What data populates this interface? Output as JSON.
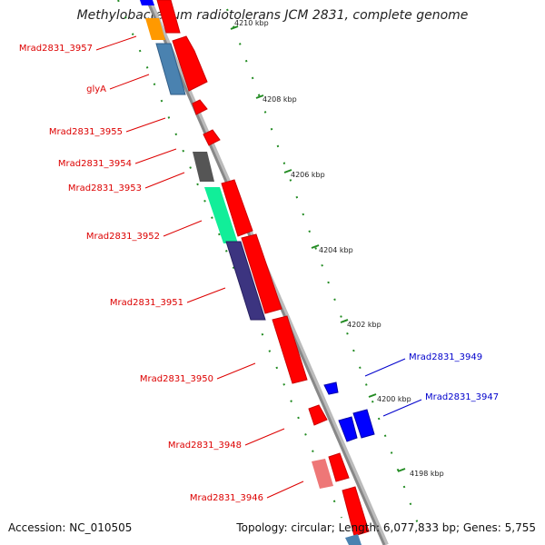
{
  "title": "Methylobacterium radiotolerans JCM 2831, complete genome",
  "footer": {
    "accession": "Accession: NC_010505",
    "summary": "Topology: circular; Length: 6,077,833 bp; Genes: 5,755"
  },
  "colors": {
    "forward_gene": "#ff0000",
    "reverse_gene": "#0000ff",
    "backbone": "#888888",
    "tick": "#228b22",
    "label_forward": "#dd0000",
    "label_reverse": "#0000cc"
  },
  "ticks": [
    {
      "label": "4210 kbp"
    },
    {
      "label": "4208 kbp"
    },
    {
      "label": "4206 kbp"
    },
    {
      "label": "4204 kbp"
    },
    {
      "label": "4202 kbp"
    },
    {
      "label": "4200 kbp"
    },
    {
      "label": "4198 kbp"
    }
  ],
  "gene_labels_forward": [
    "Mrad2831_3957",
    "glyA",
    "Mrad2831_3955",
    "Mrad2831_3954",
    "Mrad2831_3953",
    "Mrad2831_3952",
    "Mrad2831_3951",
    "Mrad2831_3950",
    "Mrad2831_3948",
    "Mrad2831_3946"
  ],
  "gene_labels_reverse": [
    "Mrad2831_3949",
    "Mrad2831_3947"
  ]
}
